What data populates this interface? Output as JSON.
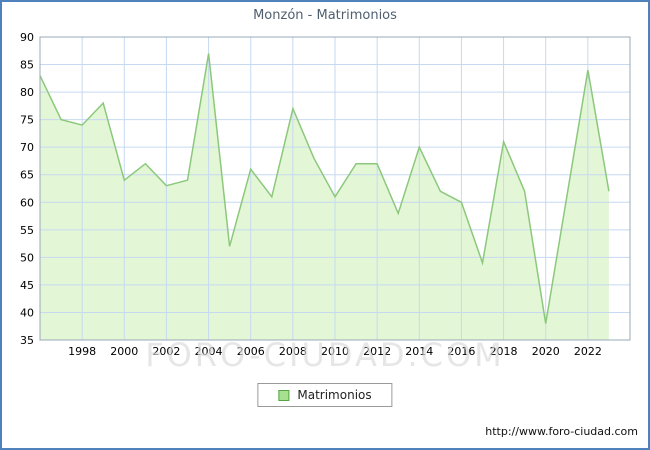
{
  "title": "Monzón - Matrimonios",
  "watermark": "FORO-CIUDAD.COM",
  "legend": {
    "label": "Matrimonios"
  },
  "footer": {
    "url": "http://www.foro-ciudad.com"
  },
  "colors": {
    "border": "#4f81bd",
    "grid": "#c6d9f1",
    "frame": "#9aa8b8",
    "area_fill": "#e3f6d6",
    "line": "#8cc87c",
    "legend_swatch": "#a6e18f",
    "tick_text": "#000000",
    "title_text": "#4f5f6f"
  },
  "chart_data": {
    "type": "area",
    "title": "Monzón - Matrimonios",
    "series_name": "Matrimonios",
    "x": [
      1996,
      1997,
      1998,
      1999,
      2000,
      2001,
      2002,
      2003,
      2004,
      2005,
      2006,
      2007,
      2008,
      2009,
      2010,
      2011,
      2012,
      2013,
      2014,
      2015,
      2016,
      2017,
      2018,
      2019,
      2020,
      2021,
      2022,
      2023
    ],
    "values": [
      83,
      75,
      74,
      78,
      64,
      67,
      63,
      64,
      87,
      52,
      66,
      61,
      77,
      68,
      61,
      67,
      67,
      58,
      70,
      62,
      60,
      49,
      71,
      62,
      38,
      61,
      84,
      62
    ],
    "ylim": [
      35,
      90
    ],
    "ytick_step": 5,
    "xlim": [
      1996,
      2024
    ],
    "xticks": [
      1998,
      2000,
      2002,
      2004,
      2006,
      2008,
      2010,
      2012,
      2014,
      2016,
      2018,
      2020,
      2022
    ],
    "grid": true,
    "legend_position": "bottom"
  }
}
